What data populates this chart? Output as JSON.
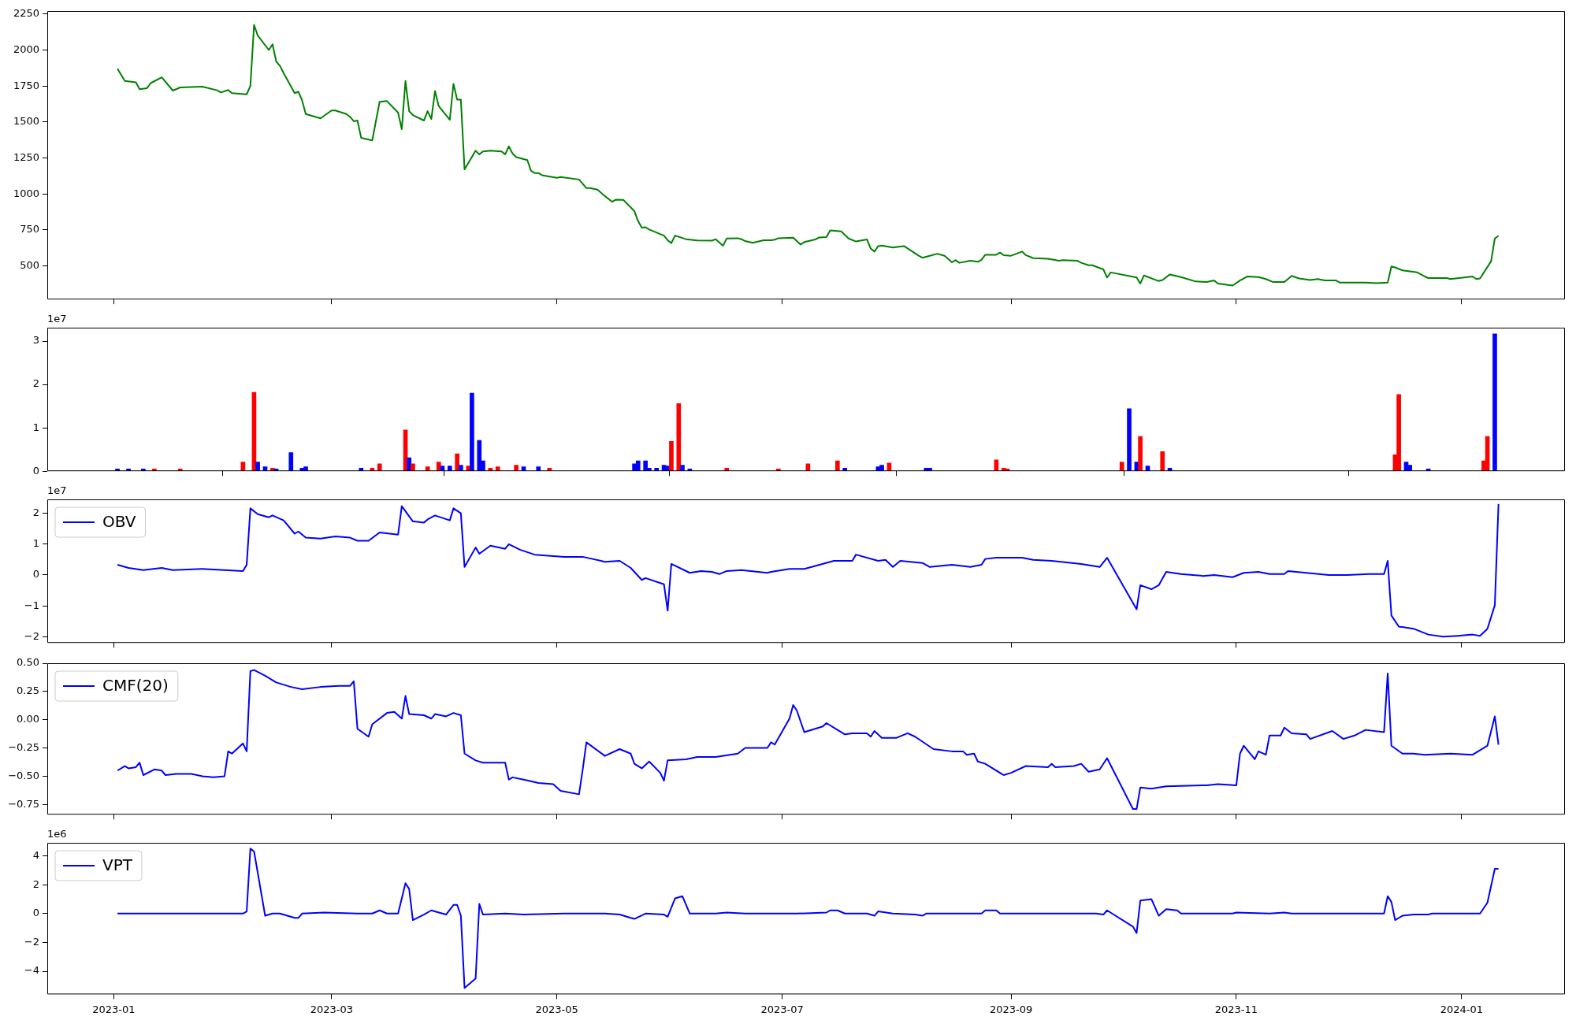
{
  "chart_data": [
    {
      "type": "line",
      "color": "#008000",
      "x": [
        "2023-01-02",
        "2023-01-04",
        "2023-01-07",
        "2023-01-08",
        "2023-01-10",
        "2023-01-11",
        "2023-01-14",
        "2023-01-17",
        "2023-01-19",
        "2023-01-25",
        "2023-01-29",
        "2023-01-30",
        "2023-02-01",
        "2023-02-02",
        "2023-02-06",
        "2023-02-07",
        "2023-02-08",
        "2023-02-09",
        "2023-02-12",
        "2023-02-13",
        "2023-02-14",
        "2023-02-15",
        "2023-02-16",
        "2023-02-19",
        "2023-02-20",
        "2023-02-21",
        "2023-02-22",
        "2023-02-26",
        "2023-03-01",
        "2023-03-02",
        "2023-03-05",
        "2023-03-06",
        "2023-03-07",
        "2023-03-08",
        "2023-03-09",
        "2023-03-12",
        "2023-03-14",
        "2023-03-16",
        "2023-03-19",
        "2023-03-20",
        "2023-03-21",
        "2023-03-22",
        "2023-03-23",
        "2023-03-26",
        "2023-03-27",
        "2023-03-28",
        "2023-03-29",
        "2023-03-30",
        "2023-04-02",
        "2023-04-03",
        "2023-04-04",
        "2023-04-05",
        "2023-04-06",
        "2023-04-09",
        "2023-04-10",
        "2023-04-11",
        "2023-04-13",
        "2023-04-16",
        "2023-04-17",
        "2023-04-18",
        "2023-04-19",
        "2023-04-20",
        "2023-04-23",
        "2023-04-24",
        "2023-04-25",
        "2023-04-26",
        "2023-04-27",
        "2023-05-01",
        "2023-05-02",
        "2023-05-07",
        "2023-05-09",
        "2023-05-10",
        "2023-05-12",
        "2023-05-14",
        "2023-05-16",
        "2023-05-17",
        "2023-05-19",
        "2023-05-22",
        "2023-05-23",
        "2023-05-24",
        "2023-05-25",
        "2023-05-26",
        "2023-05-30",
        "2023-05-31",
        "2023-06-01",
        "2023-06-02",
        "2023-06-05",
        "2023-06-08",
        "2023-06-12",
        "2023-06-13",
        "2023-06-15",
        "2023-06-16",
        "2023-06-19",
        "2023-06-20",
        "2023-06-21",
        "2023-06-23",
        "2023-06-26",
        "2023-06-28",
        "2023-06-29",
        "2023-06-30",
        "2023-07-04",
        "2023-07-06",
        "2023-07-07",
        "2023-07-10",
        "2023-07-11",
        "2023-07-13",
        "2023-07-14",
        "2023-07-17",
        "2023-07-19",
        "2023-07-21",
        "2023-07-24",
        "2023-07-25",
        "2023-07-26",
        "2023-07-27",
        "2023-07-28",
        "2023-07-31",
        "2023-08-02",
        "2023-08-03",
        "2023-08-07",
        "2023-08-08",
        "2023-08-10",
        "2023-08-12",
        "2023-08-14",
        "2023-08-16",
        "2023-08-17",
        "2023-08-18",
        "2023-08-21",
        "2023-08-23",
        "2023-08-24",
        "2023-08-25",
        "2023-08-28",
        "2023-08-29",
        "2023-08-30",
        "2023-09-01",
        "2023-09-04",
        "2023-09-05",
        "2023-09-07",
        "2023-09-11",
        "2023-09-14",
        "2023-09-15",
        "2023-09-19",
        "2023-09-20",
        "2023-09-22",
        "2023-09-23",
        "2023-09-26",
        "2023-09-27",
        "2023-09-28",
        "2023-10-05",
        "2023-10-06",
        "2023-10-07",
        "2023-10-11",
        "2023-10-12",
        "2023-10-14",
        "2023-10-17",
        "2023-10-21",
        "2023-10-24",
        "2023-10-26",
        "2023-10-27",
        "2023-10-31",
        "2023-11-02",
        "2023-11-04",
        "2023-11-07",
        "2023-11-09",
        "2023-11-11",
        "2023-11-14",
        "2023-11-16",
        "2023-11-18",
        "2023-11-21",
        "2023-11-23",
        "2023-11-25",
        "2023-11-28",
        "2023-11-29",
        "2023-12-02",
        "2023-12-06",
        "2023-12-09",
        "2023-12-12",
        "2023-12-13",
        "2023-12-14",
        "2023-12-16",
        "2023-12-20",
        "2023-12-22",
        "2023-12-23",
        "2023-12-28",
        "2023-12-29",
        "2024-01-04",
        "2024-01-05",
        "2024-01-06",
        "2024-01-09",
        "2024-01-10",
        "2024-01-11"
      ],
      "values": [
        1870,
        1785,
        1775,
        1728,
        1735,
        1770,
        1810,
        1718,
        1740,
        1745,
        1720,
        1705,
        1722,
        1700,
        1692,
        1750,
        2175,
        2100,
        2000,
        2040,
        1920,
        1890,
        1840,
        1700,
        1710,
        1650,
        1555,
        1525,
        1580,
        1580,
        1555,
        1535,
        1505,
        1510,
        1390,
        1372,
        1640,
        1645,
        1565,
        1450,
        1785,
        1575,
        1548,
        1510,
        1575,
        1520,
        1715,
        1610,
        1515,
        1765,
        1655,
        1655,
        1170,
        1300,
        1275,
        1295,
        1300,
        1295,
        1275,
        1330,
        1280,
        1255,
        1235,
        1160,
        1145,
        1145,
        1130,
        1112,
        1117,
        1100,
        1040,
        1040,
        1030,
        985,
        945,
        960,
        958,
        880,
        810,
        765,
        768,
        752,
        710,
        678,
        658,
        710,
        685,
        677,
        675,
        685,
        640,
        690,
        692,
        685,
        672,
        660,
        678,
        678,
        682,
        692,
        695,
        648,
        665,
        683,
        697,
        700,
        746,
        739,
        690,
        669,
        683,
        620,
        599,
        637,
        641,
        627,
        634,
        637,
        570,
        556,
        570,
        584,
        570,
        525,
        539,
        521,
        535,
        528,
        542,
        577,
        577,
        592,
        574,
        570,
        599,
        574,
        553,
        549,
        535,
        539,
        535,
        521,
        504,
        504,
        475,
        419,
        454,
        419,
        377,
        433,
        394,
        401,
        440,
        422,
        391,
        387,
        398,
        377,
        363,
        398,
        426,
        422,
        408,
        387,
        387,
        430,
        412,
        401,
        408,
        398,
        398,
        384,
        384,
        384,
        380,
        384,
        496,
        489,
        468,
        454,
        426,
        415,
        415,
        408,
        426,
        408,
        412,
        532,
        690,
        708
      ],
      "xlim": [
        "2022-12-14",
        "2024-01-29"
      ],
      "xticks": [
        "2023-01",
        "2023-03",
        "2023-05",
        "2023-07",
        "2023-09",
        "2023-11",
        "2024-01"
      ],
      "ylim": [
        266,
        2271
      ],
      "yticks": [
        500,
        750,
        1000,
        1250,
        1500,
        1750,
        2000,
        2250
      ],
      "tick_labels": "y"
    },
    {
      "type": "bar",
      "x": [
        "2023-01-02",
        "2023-01-05",
        "2023-01-09",
        "2023-01-12",
        "2023-01-19",
        "2023-02-05",
        "2023-02-08",
        "2023-02-09",
        "2023-02-11",
        "2023-02-13",
        "2023-02-14",
        "2023-02-18",
        "2023-02-21",
        "2023-02-22",
        "2023-03-09",
        "2023-03-12",
        "2023-03-14",
        "2023-03-21",
        "2023-03-22",
        "2023-03-23",
        "2023-03-27",
        "2023-03-30",
        "2023-03-31",
        "2023-04-02",
        "2023-04-04",
        "2023-04-05",
        "2023-04-07",
        "2023-04-08",
        "2023-04-10",
        "2023-04-11",
        "2023-04-13",
        "2023-04-15",
        "2023-04-20",
        "2023-04-22",
        "2023-04-26",
        "2023-04-29",
        "2023-05-22",
        "2023-05-23",
        "2023-05-25",
        "2023-05-26",
        "2023-05-28",
        "2023-05-30",
        "2023-05-31",
        "2023-06-01",
        "2023-06-03",
        "2023-06-04",
        "2023-06-06",
        "2023-06-16",
        "2023-06-30",
        "2023-07-08",
        "2023-07-16",
        "2023-07-18",
        "2023-07-27",
        "2023-07-28",
        "2023-07-30",
        "2023-08-09",
        "2023-08-10",
        "2023-08-28",
        "2023-08-30",
        "2023-08-31",
        "2023-10-01",
        "2023-10-03",
        "2023-10-05",
        "2023-10-06",
        "2023-10-08",
        "2023-10-12",
        "2023-10-14",
        "2023-12-14",
        "2023-12-15",
        "2023-12-17",
        "2023-12-18",
        "2023-12-23",
        "2024-01-07",
        "2024-01-08",
        "2024-01-10"
      ],
      "values": [
        0.05,
        0.05,
        0.05,
        0.05,
        0.05,
        0.21,
        1.82,
        0.21,
        0.1,
        0.07,
        0.05,
        0.43,
        0.07,
        0.1,
        0.07,
        0.07,
        0.17,
        0.95,
        0.31,
        0.17,
        0.1,
        0.21,
        0.12,
        0.12,
        0.4,
        0.14,
        0.12,
        1.8,
        0.71,
        0.24,
        0.07,
        0.1,
        0.14,
        0.1,
        0.1,
        0.07,
        0.17,
        0.24,
        0.24,
        0.07,
        0.07,
        0.14,
        0.12,
        0.69,
        1.56,
        0.14,
        0.05,
        0.07,
        0.05,
        0.17,
        0.24,
        0.07,
        0.1,
        0.14,
        0.19,
        0.07,
        0.07,
        0.26,
        0.07,
        0.05,
        0.21,
        1.44,
        0.21,
        0.8,
        0.12,
        0.45,
        0.07,
        0.38,
        1.77,
        0.21,
        0.14,
        0.05,
        0.24,
        0.8,
        3.17
      ],
      "colors": [
        "#0000ff",
        "#0000ff",
        "#0000ff",
        "#ff0000",
        "#ff0000",
        "#ff0000",
        "#ff0000",
        "#0000ff",
        "#0000ff",
        "#ff0000",
        "#0000ff",
        "#0000ff",
        "#0000ff",
        "#0000ff",
        "#0000ff",
        "#ff0000",
        "#ff0000",
        "#ff0000",
        "#0000ff",
        "#ff0000",
        "#ff0000",
        "#ff0000",
        "#0000ff",
        "#0000ff",
        "#ff0000",
        "#0000ff",
        "#ff0000",
        "#0000ff",
        "#0000ff",
        "#0000ff",
        "#ff0000",
        "#ff0000",
        "#ff0000",
        "#0000ff",
        "#0000ff",
        "#ff0000",
        "#0000ff",
        "#0000ff",
        "#0000ff",
        "#0000ff",
        "#0000ff",
        "#0000ff",
        "#0000ff",
        "#ff0000",
        "#ff0000",
        "#0000ff",
        "#0000ff",
        "#ff0000",
        "#ff0000",
        "#ff0000",
        "#ff0000",
        "#0000ff",
        "#0000ff",
        "#0000ff",
        "#ff0000",
        "#0000ff",
        "#0000ff",
        "#ff0000",
        "#ff0000",
        "#ff0000",
        "#ff0000",
        "#0000ff",
        "#0000ff",
        "#ff0000",
        "#0000ff",
        "#ff0000",
        "#0000ff",
        "#ff0000",
        "#ff0000",
        "#0000ff",
        "#0000ff",
        "#0000ff",
        "#ff0000",
        "#ff0000",
        "#0000ff"
      ],
      "xlim": [
        "2022-12-14",
        "2024-01-29"
      ],
      "xticks": [
        "2023-01",
        "2023-03",
        "2023-05",
        "2023-07",
        "2023-09",
        "2023-11",
        "2024-01"
      ],
      "ylim": [
        0,
        3.31
      ],
      "yticks": [
        0,
        1,
        2,
        3
      ],
      "tick_labels": "y",
      "annotations": [
        "1e7"
      ]
    },
    {
      "type": "line",
      "legend": "top left",
      "x": [
        "2023-01-02",
        "2023-01-05",
        "2023-01-09",
        "2023-01-14",
        "2023-01-17",
        "2023-01-25",
        "2023-01-31",
        "2023-02-05",
        "2023-02-06",
        "2023-02-07",
        "2023-02-09",
        "2023-02-12",
        "2023-02-13",
        "2023-02-16",
        "2023-02-19",
        "2023-02-20",
        "2023-02-22",
        "2023-02-26",
        "2023-03-02",
        "2023-03-06",
        "2023-03-08",
        "2023-03-11",
        "2023-03-14",
        "2023-03-19",
        "2023-03-20",
        "2023-03-23",
        "2023-03-26",
        "2023-03-27",
        "2023-03-29",
        "2023-04-02",
        "2023-04-03",
        "2023-04-05",
        "2023-04-06",
        "2023-04-09",
        "2023-04-10",
        "2023-04-13",
        "2023-04-17",
        "2023-04-18",
        "2023-04-21",
        "2023-04-25",
        "2023-05-03",
        "2023-05-08",
        "2023-05-14",
        "2023-05-18",
        "2023-05-21",
        "2023-05-24",
        "2023-05-25",
        "2023-05-30",
        "2023-05-31",
        "2023-06-01",
        "2023-06-06",
        "2023-06-09",
        "2023-06-12",
        "2023-06-14",
        "2023-06-16",
        "2023-06-20",
        "2023-06-27",
        "2023-06-28",
        "2023-07-03",
        "2023-07-07",
        "2023-07-09",
        "2023-07-15",
        "2023-07-20",
        "2023-07-21",
        "2023-07-27",
        "2023-07-29",
        "2023-07-31",
        "2023-08-02",
        "2023-08-08",
        "2023-08-10",
        "2023-08-16",
        "2023-08-21",
        "2023-08-24",
        "2023-08-25",
        "2023-08-28",
        "2023-09-04",
        "2023-09-07",
        "2023-09-12",
        "2023-09-20",
        "2023-09-25",
        "2023-09-27",
        "2023-10-05",
        "2023-10-06",
        "2023-10-09",
        "2023-10-11",
        "2023-10-13",
        "2023-10-17",
        "2023-10-23",
        "2023-10-26",
        "2023-10-31",
        "2023-11-03",
        "2023-11-07",
        "2023-11-10",
        "2023-11-14",
        "2023-11-15",
        "2023-11-20",
        "2023-11-26",
        "2023-12-01",
        "2023-12-07",
        "2023-12-11",
        "2023-12-12",
        "2023-12-13",
        "2023-12-15",
        "2023-12-19",
        "2023-12-23",
        "2023-12-27",
        "2023-12-31",
        "2024-01-04",
        "2024-01-06",
        "2024-01-08",
        "2024-01-10",
        "2024-01-11"
      ],
      "series": [
        {
          "name": "OBV",
          "color": "#0000ff",
          "values": [
            0.33,
            0.23,
            0.16,
            0.23,
            0.16,
            0.2,
            0.16,
            0.13,
            0.33,
            2.16,
            1.97,
            1.87,
            1.93,
            1.77,
            1.34,
            1.41,
            1.21,
            1.18,
            1.25,
            1.21,
            1.11,
            1.11,
            1.38,
            1.31,
            2.23,
            1.74,
            1.7,
            1.8,
            1.93,
            1.77,
            2.16,
            2.0,
            0.26,
            0.89,
            0.69,
            0.95,
            0.85,
            1.0,
            0.82,
            0.66,
            0.59,
            0.59,
            0.43,
            0.46,
            0.23,
            -0.16,
            -0.1,
            -0.3,
            -1.15,
            0.36,
            0.07,
            0.13,
            0.1,
            0.03,
            0.13,
            0.16,
            0.07,
            0.1,
            0.2,
            0.2,
            0.26,
            0.46,
            0.46,
            0.66,
            0.46,
            0.49,
            0.26,
            0.46,
            0.39,
            0.26,
            0.33,
            0.26,
            0.33,
            0.52,
            0.56,
            0.56,
            0.49,
            0.46,
            0.36,
            0.26,
            0.56,
            -1.11,
            -0.33,
            -0.46,
            -0.33,
            0.1,
            0.03,
            -0.03,
            0,
            -0.07,
            0.07,
            0.1,
            0.03,
            0.03,
            0.13,
            0.07,
            0,
            0,
            0.03,
            0.03,
            0.46,
            -1.31,
            -1.67,
            -1.74,
            -1.93,
            -2.0,
            -1.97,
            -1.93,
            -1.97,
            -1.74,
            -0.98,
            2.3
          ]
        }
      ],
      "xlim": [
        "2022-12-14",
        "2024-01-29"
      ],
      "xticks": [
        "2023-01",
        "2023-03",
        "2023-05",
        "2023-07",
        "2023-09",
        "2023-11",
        "2024-01"
      ],
      "ylim": [
        -2.2,
        2.45
      ],
      "yticks": [
        {
          "value": -2,
          "label": "−2"
        },
        {
          "value": -1,
          "label": "−1"
        },
        0,
        1,
        2
      ],
      "tick_labels": "y",
      "annotations": [
        "1e7"
      ]
    },
    {
      "type": "line",
      "legend": "top left",
      "x": [
        "2023-01-02",
        "2023-01-04",
        "2023-01-05",
        "2023-01-07",
        "2023-01-08",
        "2023-01-09",
        "2023-01-12",
        "2023-01-14",
        "2023-01-15",
        "2023-01-18",
        "2023-01-22",
        "2023-01-25",
        "2023-01-28",
        "2023-01-31",
        "2023-02-01",
        "2023-02-02",
        "2023-02-05",
        "2023-02-06",
        "2023-02-07",
        "2023-02-08",
        "2023-02-11",
        "2023-02-14",
        "2023-02-18",
        "2023-02-21",
        "2023-02-26",
        "2023-03-03",
        "2023-03-06",
        "2023-03-07",
        "2023-03-08",
        "2023-03-11",
        "2023-03-12",
        "2023-03-16",
        "2023-03-18",
        "2023-03-20",
        "2023-03-21",
        "2023-03-22",
        "2023-03-26",
        "2023-03-28",
        "2023-03-29",
        "2023-04-01",
        "2023-04-03",
        "2023-04-05",
        "2023-04-06",
        "2023-04-09",
        "2023-04-11",
        "2023-04-17",
        "2023-04-18",
        "2023-04-19",
        "2023-04-22",
        "2023-04-26",
        "2023-04-30",
        "2023-05-02",
        "2023-05-07",
        "2023-05-08",
        "2023-05-09",
        "2023-05-14",
        "2023-05-18",
        "2023-05-21",
        "2023-05-22",
        "2023-05-24",
        "2023-05-26",
        "2023-05-29",
        "2023-05-30",
        "2023-05-31",
        "2023-06-05",
        "2023-06-08",
        "2023-06-13",
        "2023-06-19",
        "2023-06-21",
        "2023-06-27",
        "2023-06-28",
        "2023-06-29",
        "2023-07-03",
        "2023-07-04",
        "2023-07-05",
        "2023-07-07",
        "2023-07-12",
        "2023-07-13",
        "2023-07-16",
        "2023-07-18",
        "2023-07-20",
        "2023-07-24",
        "2023-07-25",
        "2023-07-26",
        "2023-07-28",
        "2023-08-01",
        "2023-08-04",
        "2023-08-06",
        "2023-08-11",
        "2023-08-16",
        "2023-08-19",
        "2023-08-20",
        "2023-08-22",
        "2023-08-23",
        "2023-08-25",
        "2023-08-30",
        "2023-09-01",
        "2023-09-05",
        "2023-09-11",
        "2023-09-12",
        "2023-09-13",
        "2023-09-18",
        "2023-09-20",
        "2023-09-22",
        "2023-09-25",
        "2023-09-27",
        "2023-10-04",
        "2023-10-05",
        "2023-10-06",
        "2023-10-09",
        "2023-10-13",
        "2023-10-24",
        "2023-10-27",
        "2023-11-01",
        "2023-11-02",
        "2023-11-03",
        "2023-11-06",
        "2023-11-07",
        "2023-11-09",
        "2023-11-10",
        "2023-11-13",
        "2023-11-14",
        "2023-11-16",
        "2023-11-20",
        "2023-11-21",
        "2023-11-27",
        "2023-11-30",
        "2023-12-03",
        "2023-12-06",
        "2023-12-11",
        "2023-12-12",
        "2023-12-13",
        "2023-12-16",
        "2023-12-19",
        "2023-12-22",
        "2023-12-29",
        "2024-01-04",
        "2024-01-08",
        "2024-01-10",
        "2024-01-11"
      ],
      "series": [
        {
          "name": "CMF(20)",
          "color": "#0000ff",
          "values": [
            -0.45,
            -0.41,
            -0.43,
            -0.42,
            -0.38,
            -0.49,
            -0.44,
            -0.45,
            -0.49,
            -0.48,
            -0.48,
            -0.5,
            -0.51,
            -0.5,
            -0.28,
            -0.3,
            -0.21,
            -0.28,
            0.43,
            0.44,
            0.39,
            0.33,
            0.29,
            0.27,
            0.29,
            0.3,
            0.3,
            0.34,
            -0.08,
            -0.15,
            -0.04,
            0.06,
            0.07,
            0.01,
            0.21,
            0.05,
            0.04,
            0.01,
            0.05,
            0.03,
            0.06,
            0.04,
            -0.3,
            -0.36,
            -0.38,
            -0.38,
            -0.53,
            -0.51,
            -0.53,
            -0.56,
            -0.57,
            -0.63,
            -0.66,
            -0.44,
            -0.2,
            -0.32,
            -0.26,
            -0.3,
            -0.39,
            -0.43,
            -0.37,
            -0.47,
            -0.54,
            -0.36,
            -0.35,
            -0.33,
            -0.33,
            -0.3,
            -0.25,
            -0.25,
            -0.2,
            -0.22,
            0.01,
            0.13,
            0.08,
            -0.11,
            -0.06,
            -0.03,
            -0.09,
            -0.13,
            -0.12,
            -0.12,
            -0.15,
            -0.1,
            -0.16,
            -0.16,
            -0.12,
            -0.15,
            -0.26,
            -0.28,
            -0.28,
            -0.31,
            -0.3,
            -0.37,
            -0.39,
            -0.49,
            -0.47,
            -0.41,
            -0.42,
            -0.39,
            -0.42,
            -0.41,
            -0.39,
            -0.46,
            -0.44,
            -0.34,
            -0.79,
            -0.79,
            -0.6,
            -0.61,
            -0.59,
            -0.58,
            -0.57,
            -0.58,
            -0.3,
            -0.23,
            -0.35,
            -0.28,
            -0.31,
            -0.14,
            -0.14,
            -0.07,
            -0.12,
            -0.13,
            -0.17,
            -0.1,
            -0.17,
            -0.14,
            -0.09,
            -0.11,
            0.41,
            -0.23,
            -0.3,
            -0.3,
            -0.31,
            -0.3,
            -0.31,
            -0.23,
            0.03,
            -0.22
          ]
        }
      ],
      "xlim": [
        "2022-12-14",
        "2024-01-29"
      ],
      "xticks": [
        "2023-01",
        "2023-03",
        "2023-05",
        "2023-07",
        "2023-09",
        "2023-11",
        "2024-01"
      ],
      "ylim": [
        -0.84,
        0.5
      ],
      "yticks": [
        {
          "value": -0.75,
          "label": "−0.75"
        },
        {
          "value": -0.5,
          "label": "−0.50"
        },
        {
          "value": -0.25,
          "label": "−0.25"
        },
        {
          "value": 0,
          "label": "0.00"
        },
        {
          "value": 0.25,
          "label": "0.25"
        },
        {
          "value": 0.5,
          "label": "0.50"
        }
      ],
      "tick_labels": "y"
    },
    {
      "type": "line",
      "legend": "top left",
      "x": [
        "2023-01-02",
        "2023-02-05",
        "2023-02-06",
        "2023-02-07",
        "2023-02-08",
        "2023-02-11",
        "2023-02-13",
        "2023-02-15",
        "2023-02-19",
        "2023-02-20",
        "2023-02-21",
        "2023-02-27",
        "2023-03-08",
        "2023-03-12",
        "2023-03-14",
        "2023-03-16",
        "2023-03-19",
        "2023-03-21",
        "2023-03-22",
        "2023-03-23",
        "2023-03-26",
        "2023-03-28",
        "2023-03-31",
        "2023-04-01",
        "2023-04-03",
        "2023-04-04",
        "2023-04-05",
        "2023-04-06",
        "2023-04-09",
        "2023-04-10",
        "2023-04-11",
        "2023-04-17",
        "2023-04-22",
        "2023-05-03",
        "2023-05-14",
        "2023-05-18",
        "2023-05-21",
        "2023-05-22",
        "2023-05-25",
        "2023-05-30",
        "2023-05-31",
        "2023-06-02",
        "2023-06-04",
        "2023-06-06",
        "2023-06-13",
        "2023-06-16",
        "2023-06-21",
        "2023-07-05",
        "2023-07-13",
        "2023-07-14",
        "2023-07-16",
        "2023-07-18",
        "2023-07-24",
        "2023-07-26",
        "2023-07-27",
        "2023-07-31",
        "2023-08-06",
        "2023-08-08",
        "2023-08-09",
        "2023-08-24",
        "2023-08-25",
        "2023-08-28",
        "2023-08-29",
        "2023-09-24",
        "2023-09-26",
        "2023-09-27",
        "2023-10-04",
        "2023-10-05",
        "2023-10-06",
        "2023-10-09",
        "2023-10-11",
        "2023-10-13",
        "2023-10-16",
        "2023-10-17",
        "2023-10-31",
        "2023-11-01",
        "2023-11-10",
        "2023-11-14",
        "2023-11-16",
        "2023-12-11",
        "2023-12-12",
        "2023-12-13",
        "2023-12-14",
        "2023-12-16",
        "2023-12-19",
        "2023-12-23",
        "2023-12-24",
        "2024-01-04",
        "2024-01-06",
        "2024-01-08",
        "2024-01-10",
        "2024-01-11"
      ],
      "series": [
        {
          "name": "VPT",
          "color": "#0000ff",
          "values": [
            0,
            0,
            0.15,
            4.5,
            4.3,
            -0.15,
            0,
            0,
            -0.3,
            -0.3,
            0,
            0.07,
            0,
            0,
            0.22,
            0,
            0,
            2.1,
            1.7,
            -0.45,
            -0.07,
            0.22,
            0,
            -0.07,
            0.6,
            0.6,
            -0.15,
            -5.15,
            -4.5,
            0.67,
            -0.07,
            0,
            -0.07,
            0,
            0,
            -0.07,
            -0.3,
            -0.37,
            0,
            -0.07,
            -0.22,
            1.05,
            1.2,
            0,
            0,
            0.07,
            0,
            0,
            0.07,
            0.22,
            0.22,
            0,
            0,
            -0.15,
            0.15,
            0,
            -0.07,
            -0.15,
            0,
            0,
            0.22,
            0.22,
            0,
            0,
            -0.07,
            0.22,
            -0.9,
            -1.35,
            0.9,
            1.0,
            -0.15,
            0.3,
            0.22,
            0,
            0,
            0.07,
            0,
            0.07,
            0,
            0,
            1.2,
            0.8,
            -0.45,
            -0.15,
            -0.07,
            -0.07,
            0,
            0,
            0,
            0.75,
            3.1,
            3.1
          ]
        }
      ],
      "xlim": [
        "2022-12-14",
        "2024-01-29"
      ],
      "xticks": [
        "2023-01",
        "2023-03",
        "2023-05",
        "2023-07",
        "2023-09",
        "2023-11",
        "2024-01"
      ],
      "ylim": [
        -5.6,
        4.9
      ],
      "yticks": [
        {
          "value": -4,
          "label": "−4"
        },
        {
          "value": -2,
          "label": "−2"
        },
        0,
        2,
        4
      ],
      "annotations": [
        "1e6"
      ]
    }
  ]
}
